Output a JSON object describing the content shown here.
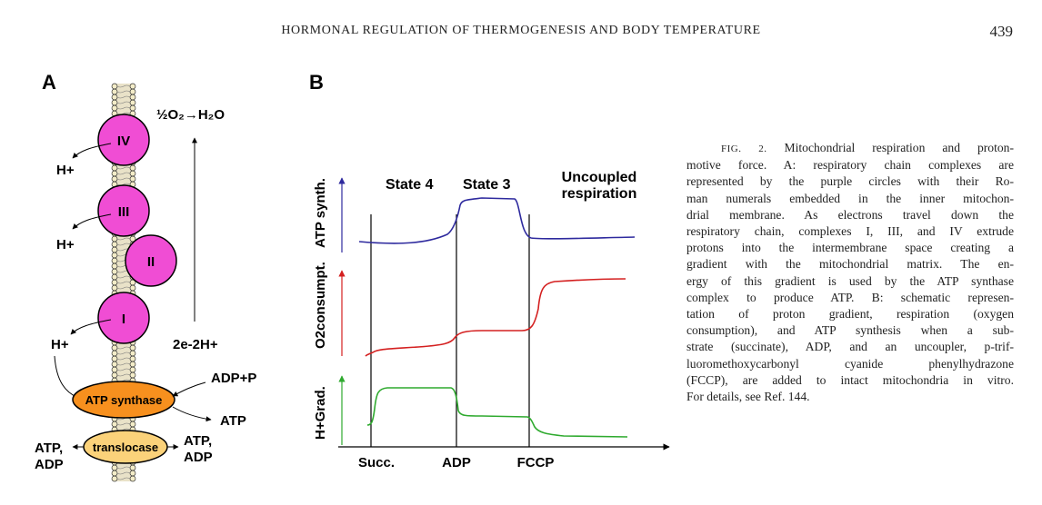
{
  "running_head": "HORMONAL REGULATION OF THERMOGENESIS AND BODY TEMPERATURE",
  "page_number": "439",
  "panel_a": {
    "label": "A",
    "reaction": "½O₂→H₂O",
    "complexes": [
      "IV",
      "III",
      "II",
      "I"
    ],
    "protons": [
      "H+",
      "H+",
      "H+"
    ],
    "electron_label": "2e-2H+",
    "atp_synthase": "ATP synthase",
    "adp_p": "ADP+P",
    "atp": "ATP",
    "translocase": "translocase",
    "left_label": [
      "ATP,",
      "ADP"
    ],
    "right_label": [
      "ATP,",
      "ADP"
    ]
  },
  "panel_b": {
    "label": "B",
    "states": [
      "State 4",
      "State 3",
      "Uncoupled",
      "respiration"
    ],
    "axis_labels": {
      "atp": "ATP synth.",
      "o2": "O2consumpt.",
      "hgrad": "H+Grad."
    },
    "x_labels": [
      "Succ.",
      "ADP",
      "FCCP"
    ],
    "colors": {
      "atp": "#2e2a9e",
      "o2": "#d42020",
      "hgrad": "#2faa2f"
    }
  },
  "caption": {
    "fig_label": "FIG. 2.",
    "lines": [
      " Mitochondrial respiration and proton-",
      "motive force. A: respiratory chain complexes are",
      "represented by the purple circles with their Ro-",
      "man numerals embedded in the inner mitochon-",
      "drial membrane. As electrons travel down the",
      "respiratory chain, complexes I, III, and IV extrude",
      "protons into the intermembrane space creating a",
      "gradient with the mitochondrial matrix. The en-",
      "ergy of this gradient is used by the ATP synthase",
      "complex to produce ATP. B: schematic represen-",
      "tation of proton gradient, respiration (oxygen",
      "consumption), and ATP synthesis when a sub-",
      "strate (succinate), ADP, and an uncoupler, p-trif-",
      "luoromethoxycarbonyl cyanide phenylhydrazone",
      "(FCCP), are added to intact mitochondria in vitro.",
      "For details, see Ref. 144."
    ]
  }
}
